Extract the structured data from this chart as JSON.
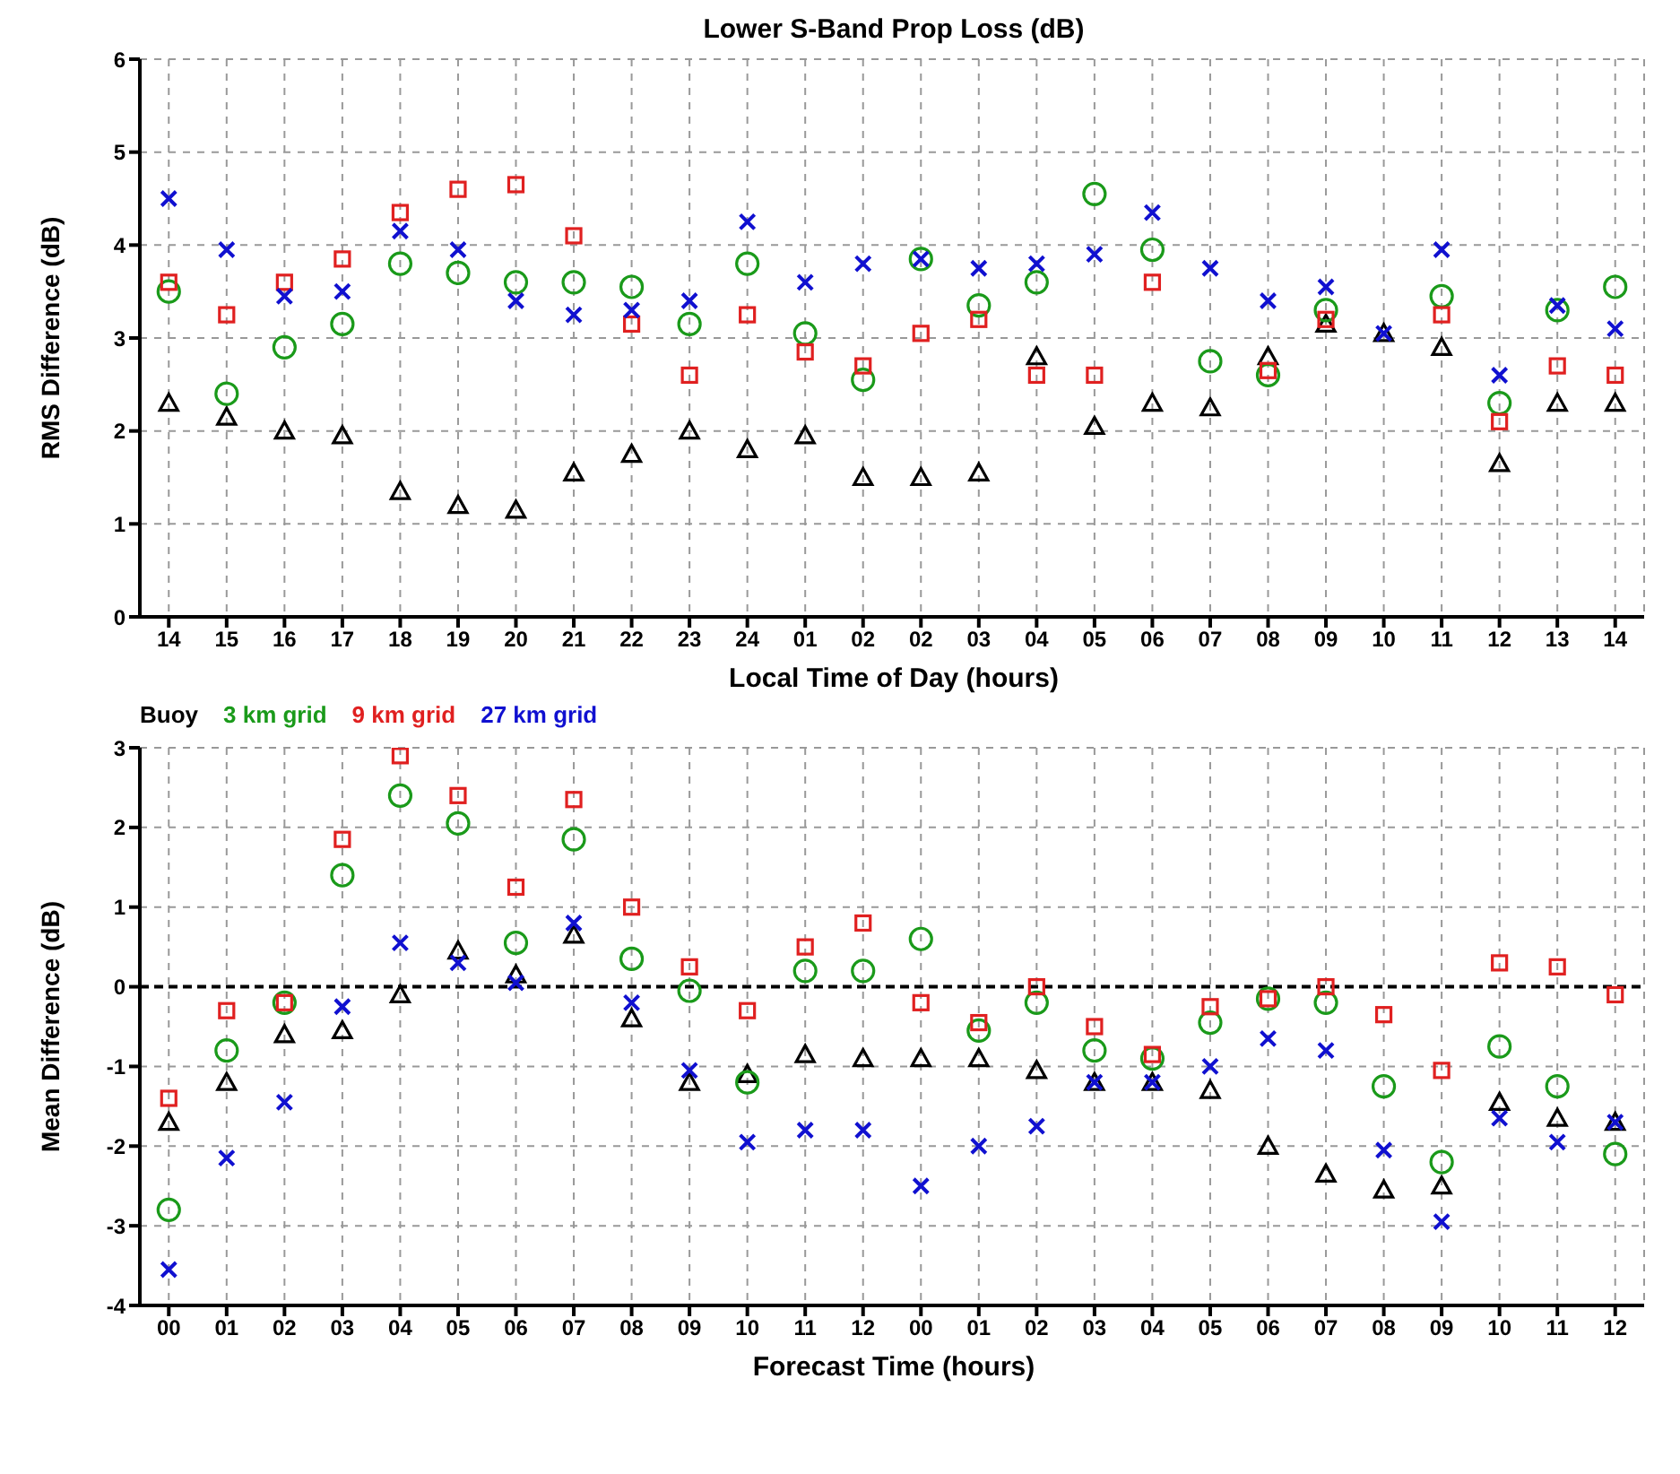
{
  "chart_data": [
    {
      "type": "scatter",
      "title": "Lower S-Band Prop Loss (dB)",
      "xlabel": "Local Time of Day (hours)",
      "ylabel": "RMS Difference (dB)",
      "categories": [
        "14",
        "15",
        "16",
        "17",
        "18",
        "19",
        "20",
        "21",
        "22",
        "23",
        "24",
        "01",
        "02",
        "02",
        "03",
        "04",
        "05",
        "06",
        "07",
        "08",
        "09",
        "10",
        "11",
        "12",
        "13",
        "14"
      ],
      "ylim": [
        0,
        6
      ],
      "yticks": [
        0,
        1,
        2,
        3,
        4,
        5,
        6
      ],
      "grid": true,
      "series": [
        {
          "color": "#000000",
          "marker": "triangle",
          "values": [
            2.3,
            2.15,
            2.0,
            1.95,
            1.35,
            1.2,
            1.15,
            1.55,
            1.75,
            2.0,
            1.8,
            1.95,
            1.5,
            1.5,
            1.55,
            2.8,
            2.05,
            2.3,
            2.25,
            2.8,
            3.15,
            3.05,
            2.9,
            1.65,
            2.3,
            2.3
          ]
        },
        {
          "color": "#1a9a1a",
          "marker": "circle",
          "values": [
            3.5,
            2.4,
            2.9,
            3.15,
            3.8,
            3.7,
            3.6,
            3.6,
            3.55,
            3.15,
            3.8,
            3.05,
            2.55,
            3.85,
            3.35,
            3.6,
            4.55,
            3.95,
            2.75,
            2.6,
            3.3,
            null,
            3.45,
            2.3,
            3.3,
            3.55
          ]
        },
        {
          "color": "#e02020",
          "marker": "square",
          "values": [
            3.6,
            3.25,
            3.6,
            3.85,
            4.35,
            4.6,
            4.65,
            4.1,
            3.15,
            2.6,
            3.25,
            2.85,
            2.7,
            3.05,
            3.2,
            2.6,
            2.6,
            3.6,
            null,
            2.65,
            3.2,
            null,
            3.25,
            2.1,
            2.7,
            2.6
          ]
        },
        {
          "color": "#1010d0",
          "marker": "cross",
          "values": [
            4.5,
            3.95,
            3.45,
            3.5,
            4.15,
            3.95,
            3.4,
            3.25,
            3.3,
            3.4,
            4.25,
            3.6,
            3.8,
            3.85,
            3.75,
            3.8,
            3.9,
            4.35,
            3.75,
            3.4,
            3.55,
            3.05,
            3.95,
            2.6,
            3.35,
            3.1
          ]
        }
      ]
    },
    {
      "type": "scatter",
      "xlabel": "Forecast Time (hours)",
      "ylabel": "Mean Difference (dB)",
      "legend": "top left",
      "categories": [
        "00",
        "01",
        "02",
        "03",
        "04",
        "05",
        "06",
        "07",
        "08",
        "09",
        "10",
        "11",
        "12",
        "00",
        "01",
        "02",
        "03",
        "04",
        "05",
        "06",
        "07",
        "08",
        "09",
        "10",
        "11",
        "12"
      ],
      "ylim": [
        -4,
        3
      ],
      "yticks": [
        -4,
        -3,
        -2,
        -1,
        0,
        1,
        2,
        3
      ],
      "grid": true,
      "ref_lines": [
        {
          "axis": "y",
          "value": 0,
          "color": "#000000",
          "line_style": "dashed"
        }
      ],
      "series": [
        {
          "name": "Buoy",
          "color": "#000000",
          "marker": "triangle",
          "values": [
            -1.7,
            -1.2,
            -0.6,
            -0.55,
            -0.1,
            0.45,
            0.15,
            0.65,
            -0.4,
            -1.2,
            -1.1,
            -0.85,
            -0.9,
            -0.9,
            -0.9,
            -1.05,
            -1.2,
            -1.2,
            -1.3,
            -2.0,
            -2.35,
            -2.55,
            -2.5,
            -1.45,
            -1.65,
            -1.7
          ]
        },
        {
          "name": "3 km grid",
          "color": "#1a9a1a",
          "marker": "circle",
          "values": [
            -2.8,
            -0.8,
            -0.2,
            1.4,
            2.4,
            2.05,
            0.55,
            1.85,
            0.35,
            -0.05,
            -1.2,
            0.2,
            0.2,
            0.6,
            -0.55,
            -0.2,
            -0.8,
            -0.9,
            -0.45,
            -0.15,
            -0.2,
            -1.25,
            -2.2,
            -0.75,
            -1.25,
            -2.1
          ]
        },
        {
          "name": "9 km grid",
          "color": "#e02020",
          "marker": "square",
          "values": [
            -1.4,
            -0.3,
            -0.2,
            1.85,
            2.9,
            2.4,
            1.25,
            2.35,
            1.0,
            0.25,
            -0.3,
            0.5,
            0.8,
            -0.2,
            -0.45,
            0.0,
            -0.5,
            -0.85,
            -0.25,
            -0.15,
            0.0,
            -0.35,
            -1.05,
            0.3,
            0.25,
            -0.1
          ]
        },
        {
          "name": "27 km grid",
          "color": "#1010d0",
          "marker": "cross",
          "values": [
            -3.55,
            -2.15,
            -1.45,
            -0.25,
            0.55,
            0.3,
            0.05,
            0.8,
            -0.2,
            -1.05,
            -1.95,
            -1.8,
            -1.8,
            -2.5,
            -2.0,
            -1.75,
            -1.2,
            -1.2,
            -1.0,
            -0.65,
            -0.8,
            -2.05,
            -2.95,
            -1.65,
            -1.95,
            -1.7
          ]
        }
      ]
    }
  ]
}
